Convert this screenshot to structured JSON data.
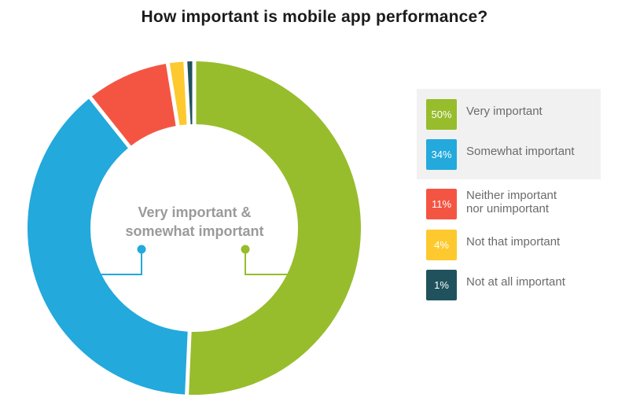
{
  "title": "How important is mobile app performance?",
  "center_label": "Very important &\nsomewhat important",
  "colors": {
    "very_important": "#97bd2c",
    "somewhat_important": "#23a9dc",
    "neither": "#f45543",
    "not_that": "#fdc92f",
    "not_at_all": "#20525e",
    "legend_bg": "#f1f1f1"
  },
  "legend": [
    {
      "pct": "50%",
      "label": "Very important",
      "color": "#97bd2c"
    },
    {
      "pct": "34%",
      "label": "Somewhat important",
      "color": "#23a9dc"
    },
    {
      "pct": "11%",
      "label": "Neither important\nnor unimportant",
      "color": "#f45543"
    },
    {
      "pct": "4%",
      "label": "Not that important",
      "color": "#fdc92f"
    },
    {
      "pct": "1%",
      "label": "Not at all important",
      "color": "#20525e"
    }
  ],
  "chart_data": {
    "type": "pie",
    "subtype": "donut",
    "title": "How important is mobile app performance?",
    "categories": [
      "Very important",
      "Somewhat important",
      "Neither important nor unimportant",
      "Not that important",
      "Not at all important"
    ],
    "values": [
      50,
      34,
      11,
      4,
      1
    ],
    "unit": "%",
    "colors": [
      "#97bd2c",
      "#23a9dc",
      "#f45543",
      "#fdc92f",
      "#20525e"
    ],
    "center_annotation": "Very important & somewhat important",
    "legend_position": "right",
    "legend_grouping": [
      [
        "Very important",
        "Somewhat important"
      ],
      [
        "Neither important nor unimportant",
        "Not that important",
        "Not at all important"
      ]
    ]
  }
}
